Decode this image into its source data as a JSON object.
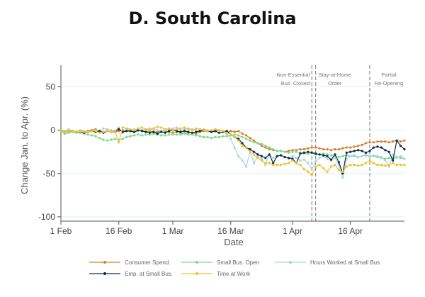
{
  "chart_data": {
    "type": "line",
    "title": "D. South Carolina",
    "xlabel": "Date",
    "ylabel": "Change Jan. to Apr. (%)",
    "x_start": "2020-02-01",
    "x_end": "2020-04-30",
    "ylim": [
      -105,
      75
    ],
    "y_ticks": [
      50,
      0,
      -50,
      -100
    ],
    "x_ticks": [
      {
        "date": "2020-02-01",
        "label": "1 Feb"
      },
      {
        "date": "2020-02-16",
        "label": "16 Feb"
      },
      {
        "date": "2020-03-01",
        "label": "1 Mar"
      },
      {
        "date": "2020-03-16",
        "label": "16 Mar"
      },
      {
        "date": "2020-04-01",
        "label": "1 Apr"
      },
      {
        "date": "2020-04-16",
        "label": "16 Apr"
      }
    ],
    "grid": true,
    "legend_position": "bottom",
    "events": [
      {
        "date": "2020-04-06",
        "label_lines": [
          "Non-Essential",
          "Bus. Closed"
        ]
      },
      {
        "date": "2020-04-07",
        "label_lines": [
          "Stay-at-Home",
          "Order"
        ]
      },
      {
        "date": "2020-04-21",
        "label_lines": [
          "Partial",
          "Re-Opening"
        ]
      }
    ],
    "series": [
      {
        "name": "Consumer Spend.",
        "color": "#d9812f",
        "values": [
          0,
          -1,
          -2,
          -1,
          -2,
          -3,
          -2,
          -1,
          0,
          1,
          -1,
          -2,
          -1,
          -2,
          -2,
          -1,
          0,
          -1,
          -1,
          -2,
          -1,
          0,
          -2,
          -1,
          -2,
          -2,
          -1,
          -1,
          -2,
          -3,
          -2,
          -3,
          -4,
          -3,
          -3,
          -4,
          -2,
          -1,
          -1,
          -2,
          -1,
          0,
          -1,
          -2,
          -1,
          -2,
          -1,
          -4,
          -6,
          -9,
          -12,
          -15,
          -18,
          -20,
          -22,
          -23,
          -24,
          -24,
          -25,
          -24,
          -23,
          -23,
          -22,
          -22,
          -21,
          -20,
          -20,
          -21,
          -22,
          -22,
          -23,
          -22,
          -22,
          -21,
          -20,
          -20,
          -19,
          -18,
          -17,
          -15,
          -14,
          -14,
          -13,
          -13,
          -13,
          -14,
          -13,
          -12,
          -13,
          -12
        ]
      },
      {
        "name": "Small Bus. Open",
        "color": "#7ddc86",
        "values": [
          -2,
          -4,
          -3,
          -2,
          -3,
          -3,
          -4,
          -5,
          -6,
          -7,
          -9,
          -11,
          -12,
          -11,
          -10,
          -11,
          -10,
          -8,
          -7,
          -6,
          -5,
          -6,
          -5,
          -5,
          -4,
          -5,
          -6,
          -6,
          -5,
          -5,
          -5,
          -5,
          -4,
          -5,
          -5,
          -6,
          -7,
          -8,
          -8,
          -9,
          -8,
          -8,
          -7,
          -7,
          -6,
          -5,
          -6,
          -8,
          -10,
          -12,
          -14,
          -15,
          -16,
          -18,
          -20,
          -22,
          -24,
          -24,
          -25,
          -26,
          -25,
          -25,
          -26,
          -27,
          -27,
          -26,
          -28,
          -28,
          -27,
          -28,
          -29,
          -30,
          -31,
          -30,
          -29,
          -30,
          -30,
          -31,
          -30,
          -29,
          -30,
          -30,
          -31,
          -32,
          -33,
          -32,
          -33,
          -31,
          -32,
          -33
        ]
      },
      {
        "name": "Hours Worked at Small Bus.",
        "color": "#a8d4e6",
        "values": [
          0,
          -1,
          1,
          -1,
          -2,
          0,
          -1,
          -2,
          -1,
          0,
          -1,
          2,
          1,
          0,
          -1,
          3,
          -3,
          1,
          0,
          1,
          -1,
          0,
          1,
          2,
          1,
          0,
          -1,
          0,
          1,
          2,
          3,
          0,
          1,
          2,
          1,
          0,
          -1,
          1,
          0,
          -1,
          1,
          0,
          -2,
          -5,
          -10,
          -20,
          -30,
          -35,
          -42,
          -25,
          -38,
          -30,
          -33,
          -40,
          -28,
          -32,
          -30,
          -29,
          -31,
          -33,
          -30,
          -32,
          -35,
          -34,
          -38,
          -45,
          -36,
          -32,
          -30,
          -33,
          -35,
          -32,
          -40,
          -55,
          -33,
          -30,
          -29,
          -31,
          -30,
          -28,
          -31,
          -29,
          -30,
          -31,
          -35,
          -42,
          -28,
          -32,
          -30,
          -33
        ]
      },
      {
        "name": "Emp. at Small Bus.",
        "color": "#0d2b4e",
        "values": [
          0,
          -2,
          -1,
          -1,
          -2,
          -1,
          -3,
          -2,
          -1,
          -2,
          -1,
          -3,
          -1,
          -2,
          -1,
          1,
          -2,
          -1,
          -1,
          -2,
          0,
          -1,
          -2,
          -3,
          -2,
          -4,
          -2,
          -3,
          -1,
          0,
          -1,
          -2,
          -1,
          -2,
          -3,
          -2,
          -1,
          0,
          -1,
          -2,
          -1,
          -3,
          -2,
          -1,
          -5,
          -8,
          -10,
          -15,
          -20,
          -22,
          -25,
          -28,
          -30,
          -32,
          -28,
          -38,
          -30,
          -29,
          -31,
          -32,
          -33,
          -38,
          -27,
          -26,
          -25,
          -26,
          -27,
          -28,
          -29,
          -30,
          -34,
          -28,
          -37,
          -50,
          -26,
          -25,
          -24,
          -23,
          -24,
          -26,
          -24,
          -20,
          -19,
          -20,
          -23,
          -25,
          -35,
          -12,
          -18,
          -22
        ]
      },
      {
        "name": "Time at Work",
        "color": "#f0c22e",
        "values": [
          0,
          -2,
          -1,
          -1,
          -2,
          -1,
          -2,
          -2,
          -1,
          -1,
          -3,
          -2,
          -1,
          -2,
          -1,
          -14,
          3,
          2,
          1,
          0,
          2,
          3,
          1,
          0,
          2,
          4,
          3,
          1,
          2,
          0,
          1,
          2,
          3,
          1,
          0,
          2,
          1,
          0,
          -1,
          0,
          1,
          0,
          -1,
          -3,
          -5,
          -8,
          -12,
          -18,
          -20,
          -25,
          -28,
          -32,
          -35,
          -38,
          -38,
          -40,
          -40,
          -40,
          -39,
          -38,
          -35,
          -38,
          -40,
          -45,
          -48,
          -52,
          -42,
          -40,
          -44,
          -48,
          -42,
          -40,
          -46,
          -48,
          -42,
          -40,
          -40,
          -41,
          -40,
          -38,
          -35,
          -38,
          -40,
          -40,
          -41,
          -40,
          -38,
          -40,
          -40,
          -40
        ]
      }
    ]
  }
}
